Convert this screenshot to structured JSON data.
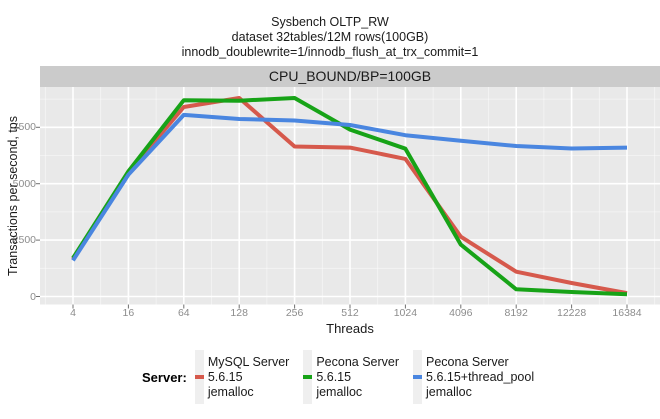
{
  "title": {
    "line1": "Sysbench OLTP_RW",
    "line2": "dataset 32tables/12M rows(100GB)",
    "line3": "innodb_doublewrite=1/innodb_flush_at_trx_commit=1"
  },
  "facet_label": "CPU_BOUND/BP=100GB",
  "axes": {
    "x_label": "Threads",
    "y_label": "Transactions per second, tps",
    "x_ticks": [
      "4",
      "16",
      "64",
      "128",
      "256",
      "512",
      "1024",
      "4096",
      "8192",
      "12228",
      "16384"
    ],
    "y_ticks": [
      0,
      2500,
      5000,
      7500
    ]
  },
  "legend": {
    "title": "Server:",
    "items": [
      {
        "label_lines": [
          "MySQL Server",
          "5.6.15",
          "jemalloc"
        ],
        "color": "#d6594c"
      },
      {
        "label_lines": [
          "Pecona Server",
          "5.6.15",
          "jemalloc"
        ],
        "color": "#17a317"
      },
      {
        "label_lines": [
          "Pecona Server",
          "5.6.15+thread_pool",
          "jemalloc"
        ],
        "color": "#4a86e0"
      }
    ]
  },
  "colors": {
    "panel_background": "#e9e9e9",
    "facet_strip_background": "#cbcbcb",
    "grid_major": "#ffffff",
    "grid_minor": "rgba(255,255,255,0.55)",
    "tick_mark": "#707070",
    "tick_text": "#8c8c8c",
    "series_red": "#d6594c",
    "series_green": "#17a317",
    "series_blue": "#4a86e0"
  },
  "chart_data": {
    "type": "line",
    "title": "Sysbench OLTP_RW — CPU_BOUND/BP=100GB",
    "xlabel": "Threads",
    "ylabel": "Transactions per second, tps",
    "x_scale": "categorical",
    "categories": [
      4,
      16,
      64,
      128,
      256,
      512,
      1024,
      4096,
      8192,
      12228,
      16384
    ],
    "series": [
      {
        "name": "MySQL Server 5.6.15 jemalloc",
        "color": "#d6594c",
        "values": [
          1650,
          5500,
          8400,
          8800,
          6650,
          6600,
          6100,
          2650,
          1100,
          600,
          150
        ]
      },
      {
        "name": "Pecona Server 5.6.15 jemalloc",
        "color": "#17a317",
        "values": [
          1700,
          5550,
          8700,
          8680,
          8800,
          7400,
          6550,
          2300,
          320,
          200,
          100
        ]
      },
      {
        "name": "Pecona Server 5.6.15+thread_pool jemalloc",
        "color": "#4a86e0",
        "values": [
          1600,
          5400,
          8050,
          7870,
          7800,
          7600,
          7150,
          6900,
          6670,
          6560,
          6600
        ]
      }
    ],
    "ylim": [
      0,
      9000
    ],
    "y_major_gridlines": [
      0,
      2500,
      5000,
      7500
    ],
    "y_minor_gridlines": [
      1250,
      3750,
      6250,
      8750
    ],
    "grid": true,
    "legend_position": "bottom"
  }
}
